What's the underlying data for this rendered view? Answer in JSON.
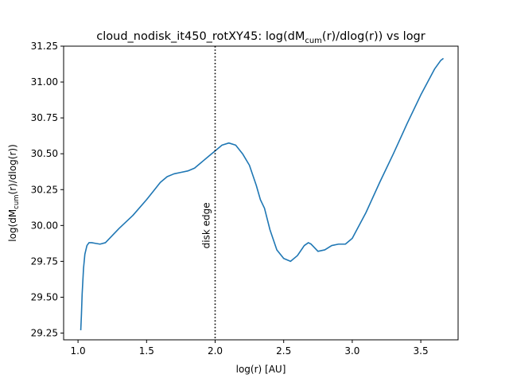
{
  "chart_data": {
    "type": "line",
    "title": {
      "prefix": "cloud_nodisk_it450_rotXY45: log(dM",
      "sub": "cum",
      "suffix": "(r)/dlog(r)) vs logr"
    },
    "xlabel": "log(r) [AU]",
    "ylabel": {
      "prefix": "log(dM",
      "sub": "cum",
      "suffix": "(r)/dlog(r))"
    },
    "xlim": [
      0.895,
      3.772
    ],
    "ylim": [
      29.203,
      31.25
    ],
    "xticks": [
      {
        "value": 1.0,
        "label": "1.0"
      },
      {
        "value": 1.5,
        "label": "1.5"
      },
      {
        "value": 2.0,
        "label": "2.0"
      },
      {
        "value": 2.5,
        "label": "2.5"
      },
      {
        "value": 3.0,
        "label": "3.0"
      },
      {
        "value": 3.5,
        "label": "3.5"
      }
    ],
    "yticks": [
      {
        "value": 29.25,
        "label": "29.25"
      },
      {
        "value": 29.5,
        "label": "29.50"
      },
      {
        "value": 29.75,
        "label": "29.75"
      },
      {
        "value": 30.0,
        "label": "30.00"
      },
      {
        "value": 30.25,
        "label": "30.25"
      },
      {
        "value": 30.5,
        "label": "30.50"
      },
      {
        "value": 30.75,
        "label": "30.75"
      },
      {
        "value": 31.0,
        "label": "31.00"
      },
      {
        "value": 31.25,
        "label": "31.25"
      }
    ],
    "grid": false,
    "series": [
      {
        "color": "#1f77b4",
        "x": [
          1.02,
          1.025,
          1.03,
          1.04,
          1.05,
          1.065,
          1.08,
          1.1,
          1.13,
          1.16,
          1.2,
          1.25,
          1.3,
          1.4,
          1.5,
          1.55,
          1.6,
          1.65,
          1.7,
          1.75,
          1.8,
          1.85,
          1.9,
          1.95,
          2.0,
          2.05,
          2.1,
          2.15,
          2.2,
          2.25,
          2.3,
          2.33,
          2.36,
          2.4,
          2.45,
          2.5,
          2.55,
          2.6,
          2.65,
          2.68,
          2.7,
          2.73,
          2.75,
          2.8,
          2.85,
          2.9,
          2.95,
          3.0,
          3.1,
          3.2,
          3.3,
          3.4,
          3.5,
          3.6,
          3.645,
          3.665
        ],
        "y": [
          29.27,
          29.38,
          29.52,
          29.7,
          29.8,
          29.86,
          29.88,
          29.88,
          29.875,
          29.87,
          29.88,
          29.93,
          29.98,
          30.07,
          30.18,
          30.24,
          30.3,
          30.34,
          30.36,
          30.37,
          30.38,
          30.4,
          30.44,
          30.48,
          30.52,
          30.56,
          30.575,
          30.56,
          30.5,
          30.42,
          30.28,
          30.18,
          30.12,
          29.97,
          29.83,
          29.77,
          29.75,
          29.79,
          29.86,
          29.88,
          29.87,
          29.84,
          29.82,
          29.83,
          29.86,
          29.87,
          29.87,
          29.91,
          30.09,
          30.3,
          30.5,
          30.71,
          30.91,
          31.09,
          31.15,
          31.165
        ]
      }
    ],
    "annotations": [
      {
        "type": "vline",
        "x": 2.0,
        "style": "dotted",
        "color": "#000000",
        "text": "disk edge",
        "text_y": 30.0
      }
    ]
  }
}
